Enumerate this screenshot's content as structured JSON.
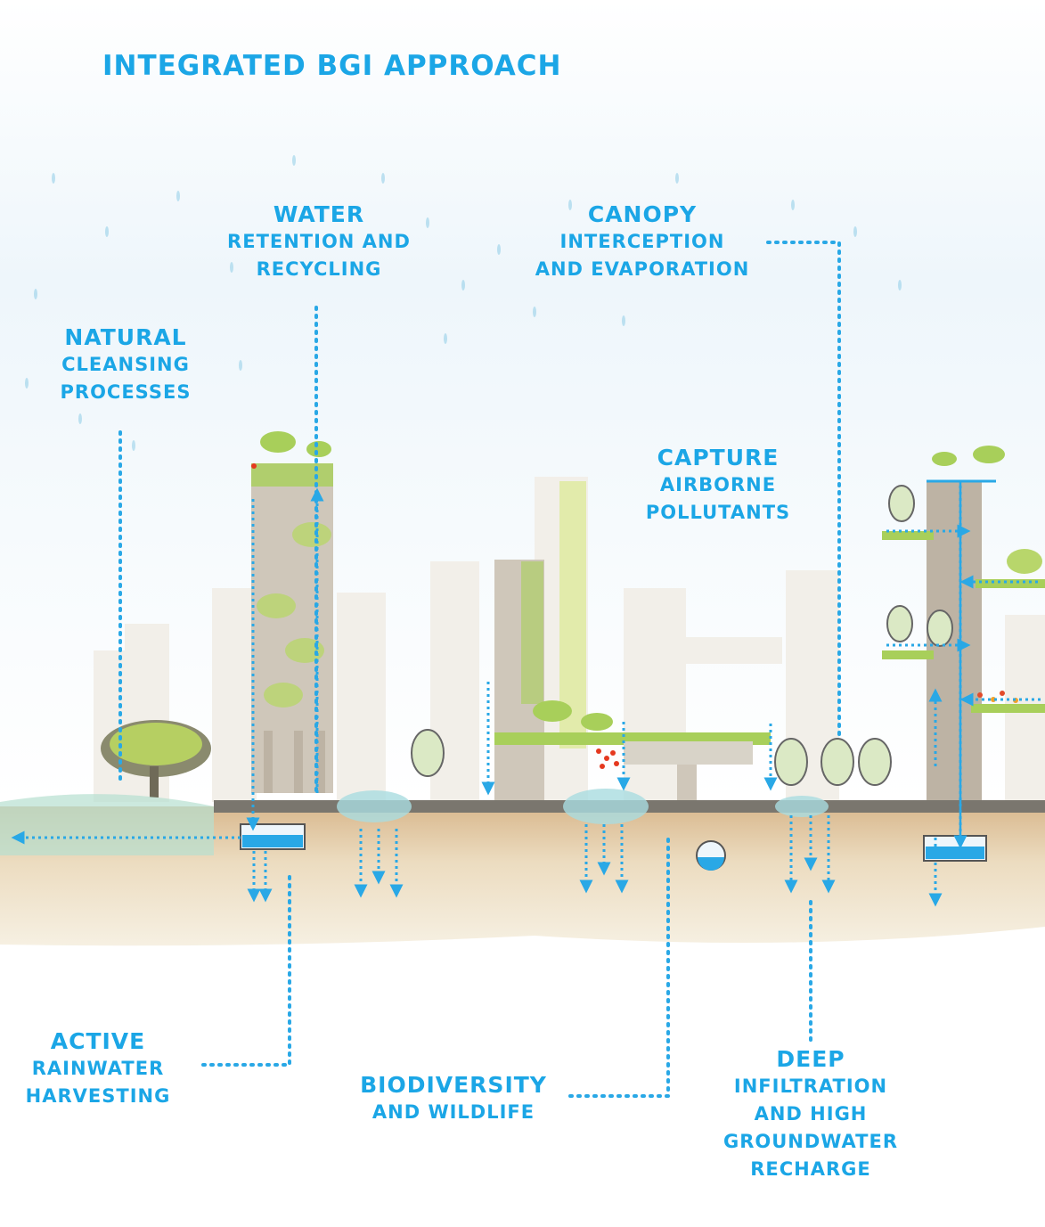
{
  "title": "INTEGRATED BGI APPROACH",
  "colors": {
    "accent": "#1ba6e6",
    "water": "#29a8e6",
    "building": "#cfc7ba",
    "tower": "#bdb3a4",
    "greenery": "#a8cf5a",
    "ground": "#e8dcc2",
    "sky": "#eef6fb"
  },
  "labels": {
    "water_retention": [
      "Water",
      "retention and",
      "recycling"
    ],
    "canopy": [
      "Canopy",
      "interception",
      "and evaporation"
    ],
    "natural_cleansing": [
      "Natural",
      "cleansing",
      "processes"
    ],
    "capture_pollutants": [
      "Capture",
      "airborne",
      "pollutants"
    ],
    "rainwater": [
      "Active",
      "rainwater",
      "harvesting"
    ],
    "biodiversity": [
      "Biodiversity",
      "and wildlife"
    ],
    "deep_infiltration": [
      "Deep",
      "infiltration",
      "and high",
      "groundwater",
      "recharge"
    ]
  }
}
